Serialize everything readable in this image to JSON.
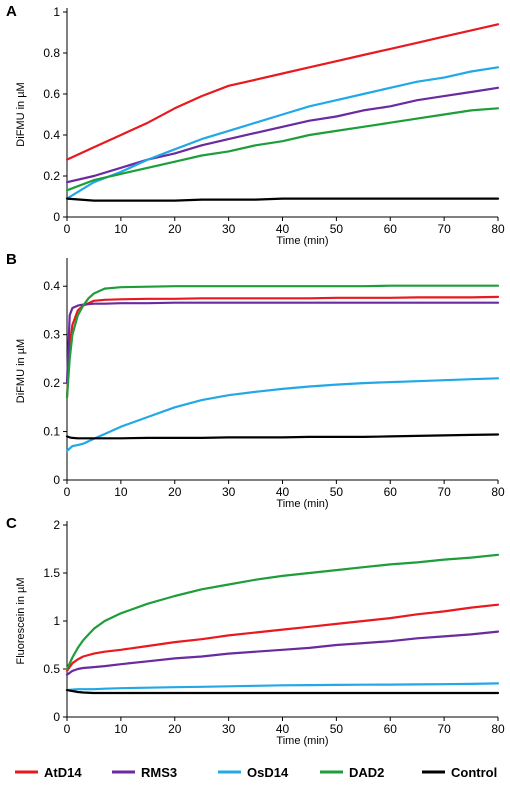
{
  "colors": {
    "AtD14": "#e8191f",
    "RMS3": "#6a2aa0",
    "OsD14": "#22a8e6",
    "DAD2": "#1e9e3a",
    "Control": "#000000"
  },
  "legend": [
    "AtD14",
    "RMS3",
    "OsD14",
    "DAD2",
    "Control"
  ],
  "chart_data": [
    {
      "type": "line",
      "panel": "A",
      "xlabel": "Time (min)",
      "ylabel": "DiFMU in µM",
      "xlim": [
        0,
        80
      ],
      "ylim": [
        0,
        1
      ],
      "xticks": [
        0,
        10,
        20,
        30,
        40,
        50,
        60,
        70,
        80
      ],
      "yticks": [
        0,
        0.2,
        0.4,
        0.6,
        0.8,
        1
      ],
      "ytick_labels": [
        "0",
        "0.2",
        "0.4",
        "0.6",
        "0.8",
        "1"
      ],
      "grid": false,
      "x": [
        0,
        5,
        10,
        15,
        20,
        25,
        30,
        35,
        40,
        45,
        50,
        55,
        60,
        65,
        70,
        75,
        80
      ],
      "series": [
        {
          "name": "AtD14",
          "values": [
            0.28,
            0.34,
            0.4,
            0.46,
            0.53,
            0.59,
            0.64,
            0.67,
            0.7,
            0.73,
            0.76,
            0.79,
            0.82,
            0.85,
            0.88,
            0.91,
            0.94
          ]
        },
        {
          "name": "RMS3",
          "values": [
            0.17,
            0.2,
            0.24,
            0.28,
            0.31,
            0.35,
            0.38,
            0.41,
            0.44,
            0.47,
            0.49,
            0.52,
            0.54,
            0.57,
            0.59,
            0.61,
            0.63
          ]
        },
        {
          "name": "OsD14",
          "values": [
            0.09,
            0.17,
            0.22,
            0.28,
            0.33,
            0.38,
            0.42,
            0.46,
            0.5,
            0.54,
            0.57,
            0.6,
            0.63,
            0.66,
            0.68,
            0.71,
            0.73
          ]
        },
        {
          "name": "DAD2",
          "values": [
            0.13,
            0.18,
            0.21,
            0.24,
            0.27,
            0.3,
            0.32,
            0.35,
            0.37,
            0.4,
            0.42,
            0.44,
            0.46,
            0.48,
            0.5,
            0.52,
            0.53
          ]
        },
        {
          "name": "Control",
          "values": [
            0.09,
            0.08,
            0.08,
            0.08,
            0.08,
            0.085,
            0.085,
            0.085,
            0.09,
            0.09,
            0.09,
            0.09,
            0.09,
            0.09,
            0.09,
            0.09,
            0.09
          ]
        }
      ]
    },
    {
      "type": "line",
      "panel": "B",
      "xlabel": "Time (min)",
      "ylabel": "DiFMU in µM",
      "xlim": [
        0,
        80
      ],
      "ylim": [
        0,
        0.45
      ],
      "xticks": [
        0,
        10,
        20,
        30,
        40,
        50,
        60,
        70,
        80
      ],
      "yticks": [
        0,
        0.1,
        0.2,
        0.3,
        0.4
      ],
      "ytick_labels": [
        "0",
        "0.1",
        "0.2",
        "0.3",
        "0.4"
      ],
      "grid": false,
      "x": [
        0,
        0.5,
        1,
        2,
        3,
        4,
        5,
        7,
        10,
        15,
        20,
        25,
        30,
        35,
        40,
        45,
        50,
        55,
        60,
        65,
        70,
        75,
        80
      ],
      "series": [
        {
          "name": "AtD14",
          "values": [
            0.17,
            0.28,
            0.32,
            0.35,
            0.36,
            0.365,
            0.37,
            0.372,
            0.373,
            0.374,
            0.374,
            0.375,
            0.375,
            0.375,
            0.375,
            0.375,
            0.376,
            0.376,
            0.376,
            0.377,
            0.377,
            0.377,
            0.378
          ]
        },
        {
          "name": "RMS3",
          "values": [
            0.2,
            0.34,
            0.355,
            0.36,
            0.362,
            0.363,
            0.364,
            0.364,
            0.365,
            0.365,
            0.366,
            0.366,
            0.366,
            0.366,
            0.366,
            0.366,
            0.366,
            0.366,
            0.366,
            0.366,
            0.366,
            0.366,
            0.366
          ]
        },
        {
          "name": "OsD14",
          "values": [
            0.06,
            0.065,
            0.07,
            0.072,
            0.075,
            0.08,
            0.085,
            0.095,
            0.11,
            0.13,
            0.15,
            0.165,
            0.175,
            0.182,
            0.188,
            0.193,
            0.197,
            0.2,
            0.202,
            0.204,
            0.206,
            0.208,
            0.21
          ]
        },
        {
          "name": "DAD2",
          "values": [
            0.17,
            0.25,
            0.3,
            0.34,
            0.36,
            0.375,
            0.385,
            0.395,
            0.398,
            0.399,
            0.4,
            0.4,
            0.4,
            0.4,
            0.4,
            0.4,
            0.4,
            0.4,
            0.401,
            0.401,
            0.401,
            0.401,
            0.401
          ]
        },
        {
          "name": "Control",
          "values": [
            0.09,
            0.088,
            0.087,
            0.086,
            0.086,
            0.086,
            0.086,
            0.086,
            0.086,
            0.087,
            0.087,
            0.087,
            0.088,
            0.088,
            0.088,
            0.089,
            0.089,
            0.089,
            0.09,
            0.091,
            0.092,
            0.093,
            0.094
          ]
        }
      ]
    },
    {
      "type": "line",
      "panel": "C",
      "xlabel": "Time (min)",
      "ylabel": "Fluorescein in µM",
      "xlim": [
        0,
        80
      ],
      "ylim": [
        0,
        2
      ],
      "xticks": [
        0,
        10,
        20,
        30,
        40,
        50,
        60,
        70,
        80
      ],
      "yticks": [
        0,
        0.5,
        1,
        1.5,
        2
      ],
      "ytick_labels": [
        "0",
        "0.5",
        "1",
        "1.5",
        "2"
      ],
      "grid": false,
      "x": [
        0,
        1,
        2,
        3,
        5,
        7,
        10,
        15,
        20,
        25,
        30,
        35,
        40,
        45,
        50,
        55,
        60,
        65,
        70,
        75,
        80
      ],
      "series": [
        {
          "name": "AtD14",
          "values": [
            0.48,
            0.56,
            0.6,
            0.63,
            0.66,
            0.68,
            0.7,
            0.74,
            0.78,
            0.81,
            0.85,
            0.88,
            0.91,
            0.94,
            0.97,
            1.0,
            1.03,
            1.07,
            1.1,
            1.14,
            1.17
          ]
        },
        {
          "name": "RMS3",
          "values": [
            0.44,
            0.48,
            0.5,
            0.51,
            0.52,
            0.53,
            0.55,
            0.58,
            0.61,
            0.63,
            0.66,
            0.68,
            0.7,
            0.72,
            0.75,
            0.77,
            0.79,
            0.82,
            0.84,
            0.86,
            0.89
          ]
        },
        {
          "name": "OsD14",
          "values": [
            0.28,
            0.285,
            0.29,
            0.29,
            0.29,
            0.295,
            0.3,
            0.305,
            0.31,
            0.315,
            0.32,
            0.325,
            0.33,
            0.332,
            0.334,
            0.336,
            0.338,
            0.34,
            0.342,
            0.345,
            0.35
          ]
        },
        {
          "name": "DAD2",
          "values": [
            0.5,
            0.62,
            0.72,
            0.8,
            0.92,
            1.0,
            1.08,
            1.18,
            1.26,
            1.33,
            1.38,
            1.43,
            1.47,
            1.5,
            1.53,
            1.56,
            1.59,
            1.61,
            1.64,
            1.66,
            1.69
          ]
        },
        {
          "name": "Control",
          "values": [
            0.28,
            0.27,
            0.26,
            0.255,
            0.25,
            0.25,
            0.25,
            0.25,
            0.25,
            0.25,
            0.25,
            0.25,
            0.25,
            0.25,
            0.25,
            0.25,
            0.25,
            0.25,
            0.25,
            0.25,
            0.25
          ]
        }
      ]
    }
  ]
}
